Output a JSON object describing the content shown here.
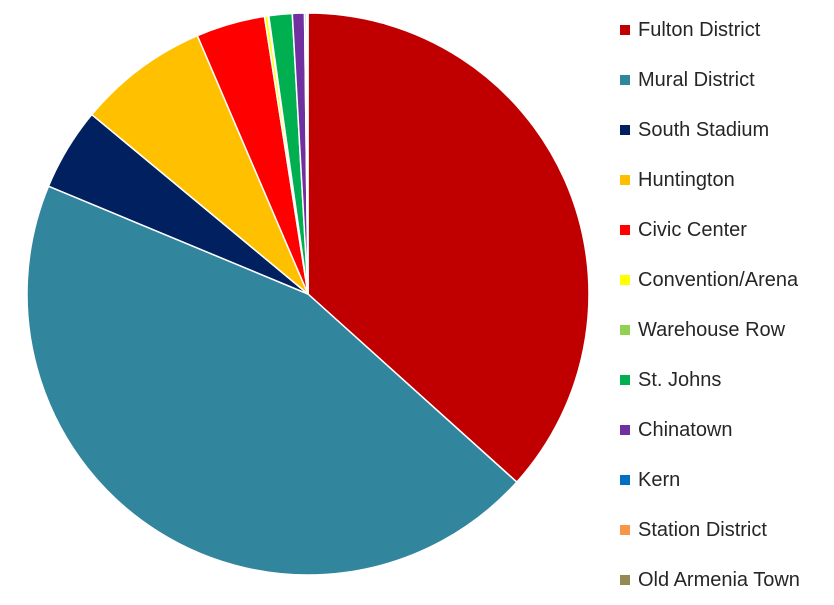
{
  "chart_data": {
    "type": "pie",
    "title": "",
    "legend_position": "right",
    "start_angle": "12 o'clock",
    "direction": "clockwise",
    "slices": [
      {
        "label": "Fulton District",
        "value": 37.0,
        "color": "#C00000"
      },
      {
        "label": "Mural District",
        "value": 45.0,
        "color": "#31859C"
      },
      {
        "label": "South Stadium",
        "value": 4.8,
        "color": "#002060"
      },
      {
        "label": "Huntington",
        "value": 7.6,
        "color": "#FFC000"
      },
      {
        "label": "Civic Center",
        "value": 4.0,
        "color": "#FF0000"
      },
      {
        "label": "Convention/Arena",
        "value": 0.2,
        "color": "#FFFF00"
      },
      {
        "label": "Warehouse Row",
        "value": 0.05,
        "color": "#92D050"
      },
      {
        "label": "St. Johns",
        "value": 1.35,
        "color": "#00B050"
      },
      {
        "label": "Chinatown",
        "value": 0.7,
        "color": "#7030A0"
      },
      {
        "label": "Kern",
        "value": 0.1,
        "color": "#0070C0"
      },
      {
        "label": "Station District",
        "value": 0.05,
        "color": "#F79646"
      },
      {
        "label": "Old Armenia Town",
        "value": 0.05,
        "color": "#948A54"
      }
    ]
  }
}
